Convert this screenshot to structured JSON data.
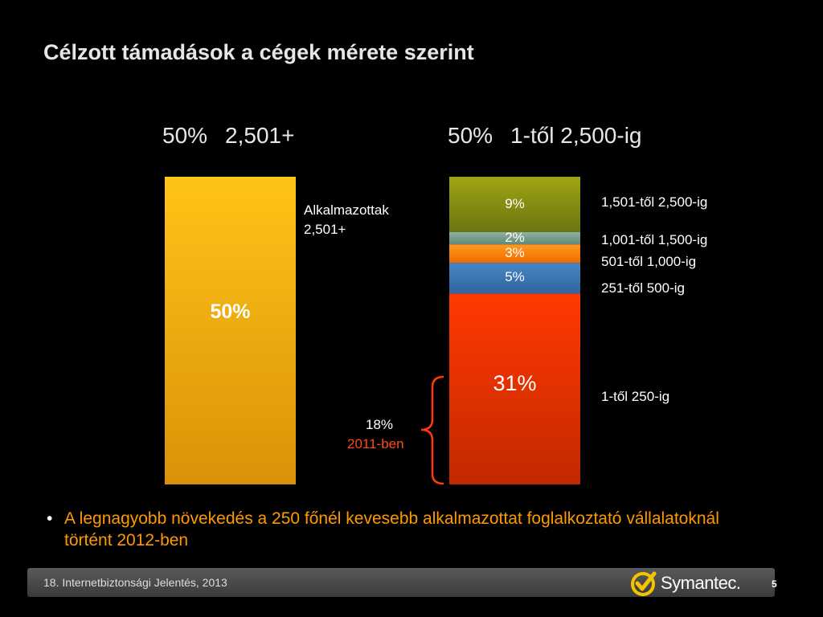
{
  "title": "Célzott támadások a cégek mérete szerint",
  "chart_data": {
    "type": "bar",
    "stacked": true,
    "bars": [
      {
        "header_pct": "50%",
        "header_label": "2,501+",
        "segments": [
          {
            "value": 50,
            "value_label": "50%",
            "label": "Alkalmazottak\n2,501+",
            "color": "#f7b411"
          }
        ]
      },
      {
        "header_pct": "50%",
        "header_label": "1-től 2,500-ig",
        "segments": [
          {
            "value": 9,
            "value_label": "9%",
            "label": "1,501-től 2,500-ig",
            "color": "#8f9611"
          },
          {
            "value": 2,
            "value_label": "2%",
            "label": "1,001-től 1,500-ig",
            "color": "#7a9e8e"
          },
          {
            "value": 3,
            "value_label": "3%",
            "label": "501-től 1,000-ig",
            "color": "#ff7a10"
          },
          {
            "value": 5,
            "value_label": "5%",
            "label": "251-től 500-ig",
            "color": "#3f78b4"
          },
          {
            "value": 31,
            "value_label": "31%",
            "label": "1-től 250-ig",
            "color": "#ff3300"
          }
        ]
      }
    ],
    "annotation": {
      "value_label": "18%",
      "year_label": "2011-ben",
      "year_color": "#ff4a1a"
    }
  },
  "bullet": "A legnagyobb növekedés a 250 főnél kevesebb alkalmazottat foglalkoztató vállalatoknál történt 2012-ben",
  "footer": {
    "text": "18. Internetbiztonsági Jelentés, 2013",
    "page": "5",
    "logo": "Symantec."
  }
}
